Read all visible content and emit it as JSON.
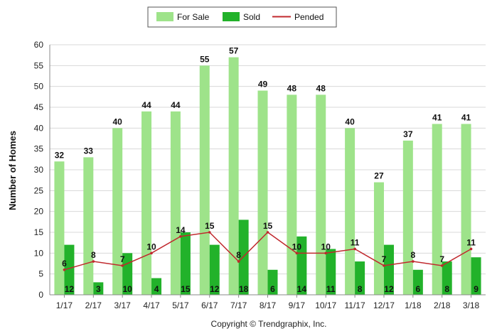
{
  "chart_data": {
    "type": "bar",
    "categories": [
      "1/17",
      "2/17",
      "3/17",
      "4/17",
      "5/17",
      "6/17",
      "7/17",
      "8/17",
      "9/17",
      "10/17",
      "11/17",
      "12/17",
      "1/18",
      "2/18",
      "3/18"
    ],
    "series": [
      {
        "name": "For Sale",
        "type": "bar",
        "color": "#9ee38a",
        "values": [
          32,
          33,
          40,
          44,
          44,
          55,
          57,
          49,
          48,
          48,
          40,
          27,
          37,
          41,
          41
        ]
      },
      {
        "name": "Sold",
        "type": "bar",
        "color": "#22b22a",
        "values": [
          12,
          3,
          10,
          4,
          15,
          12,
          18,
          6,
          14,
          11,
          8,
          12,
          6,
          8,
          9
        ]
      },
      {
        "name": "Pended",
        "type": "line",
        "color": "#c0282d",
        "values": [
          6,
          8,
          7,
          10,
          14,
          15,
          8,
          15,
          10,
          10,
          11,
          7,
          8,
          7,
          11
        ]
      }
    ],
    "ylabel": "Number of Homes",
    "xlabel": "",
    "ylim": [
      0,
      60
    ],
    "yticks": [
      0,
      5,
      10,
      15,
      20,
      25,
      30,
      35,
      40,
      45,
      50,
      55,
      60
    ],
    "grid": true,
    "legend_position": "top-center"
  },
  "footer": {
    "copyright": "Copyright © Trendgraphix, Inc."
  }
}
